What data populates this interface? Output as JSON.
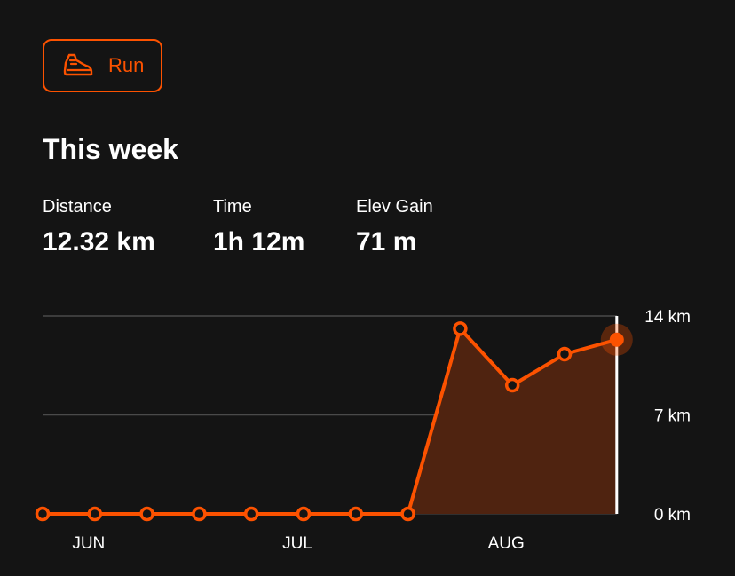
{
  "sport_button": {
    "label": "Run",
    "icon": "running-shoe-icon"
  },
  "title": "This week",
  "stats": [
    {
      "label": "Distance",
      "value": "12.32 km"
    },
    {
      "label": "Time",
      "value": "1h 12m"
    },
    {
      "label": "Elev Gain",
      "value": "71 m"
    }
  ],
  "colors": {
    "accent": "#fc5200",
    "area_fill": "#4f2310",
    "background": "#141414",
    "grid": "#4a4a4a"
  },
  "chart_data": {
    "type": "area",
    "title": "",
    "xlabel": "",
    "ylabel": "",
    "ylim": [
      0,
      14
    ],
    "y_ticks": [
      {
        "value": 14,
        "label": "14 km"
      },
      {
        "value": 7,
        "label": "7 km"
      },
      {
        "value": 0,
        "label": "0 km"
      }
    ],
    "x_labels": [
      {
        "index": 1,
        "label": "JUN"
      },
      {
        "index": 5,
        "label": "JUL"
      },
      {
        "index": 9,
        "label": "AUG"
      }
    ],
    "series": [
      {
        "values": [
          0,
          0,
          0,
          0,
          0,
          0,
          0,
          0,
          13.1,
          9.1,
          11.3,
          12.32
        ]
      }
    ],
    "highlight_index": 11,
    "grid": true,
    "axis_position": "right"
  }
}
